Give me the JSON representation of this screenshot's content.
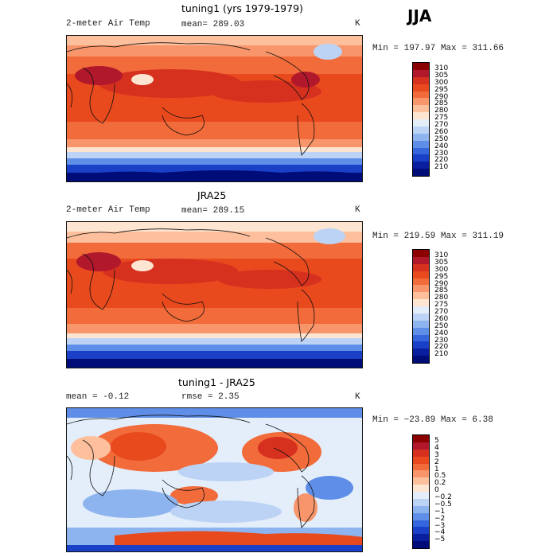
{
  "season": "JJA",
  "panels": [
    {
      "title": "tuning1 (yrs 1979-1979)",
      "left_label": "2-meter Air Temp",
      "center_label": "mean= 289.03",
      "units": "K",
      "stats": "Min = 197.97 Max = 311.66",
      "colorbar": {
        "labels": [
          "310",
          "305",
          "300",
          "295",
          "290",
          "285",
          "280",
          "275",
          "270",
          "260",
          "250",
          "240",
          "230",
          "220",
          "210"
        ],
        "colors": [
          "#8b0000",
          "#b2182b",
          "#d6301f",
          "#e8491d",
          "#f26b3a",
          "#f8956a",
          "#fdbf9c",
          "#fee5d2",
          "#e3eefa",
          "#bcd3f5",
          "#8eb4ef",
          "#5f8ee8",
          "#3566dd",
          "#1a40c8",
          "#0a1fa0",
          "#000c78"
        ]
      }
    },
    {
      "title": "JRA25",
      "left_label": "2-meter Air Temp",
      "center_label": "mean= 289.15",
      "units": "K",
      "stats": "Min = 219.59 Max = 311.19",
      "colorbar": {
        "labels": [
          "310",
          "305",
          "300",
          "295",
          "290",
          "285",
          "280",
          "275",
          "270",
          "260",
          "250",
          "240",
          "230",
          "220",
          "210"
        ],
        "colors": [
          "#8b0000",
          "#b2182b",
          "#d6301f",
          "#e8491d",
          "#f26b3a",
          "#f8956a",
          "#fdbf9c",
          "#fee5d2",
          "#e3eefa",
          "#bcd3f5",
          "#8eb4ef",
          "#5f8ee8",
          "#3566dd",
          "#1a40c8",
          "#0a1fa0",
          "#000c78"
        ]
      }
    },
    {
      "title": "tuning1 - JRA25",
      "left_label": "mean =  -0.12",
      "center_label": "rmse =   2.35",
      "units": "K",
      "stats": "Min = −23.89 Max =   6.38",
      "colorbar": {
        "labels": [
          "5",
          "4",
          "3",
          "2",
          "1",
          "0.5",
          "0.2",
          "0",
          "−0.2",
          "−0.5",
          "−1",
          "−2",
          "−3",
          "−4",
          "−5"
        ],
        "colors": [
          "#8b0000",
          "#b2182b",
          "#d6301f",
          "#e8491d",
          "#f26b3a",
          "#f8956a",
          "#fdbf9c",
          "#fee5d2",
          "#e3eefa",
          "#bcd3f5",
          "#8eb4ef",
          "#5f8ee8",
          "#3566dd",
          "#1a40c8",
          "#0a1fa0",
          "#000c78"
        ]
      }
    }
  ]
}
